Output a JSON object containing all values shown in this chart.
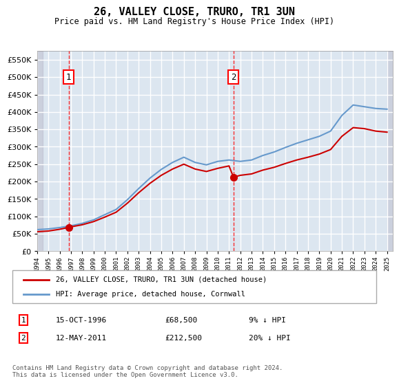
{
  "title": "26, VALLEY CLOSE, TRURO, TR1 3UN",
  "subtitle": "Price paid vs. HM Land Registry's House Price Index (HPI)",
  "sale1_date": "15-OCT-1996",
  "sale1_price": 68500,
  "sale1_label": "1",
  "sale1_hpi_note": "9% ↓ HPI",
  "sale2_date": "12-MAY-2011",
  "sale2_price": 212500,
  "sale2_label": "2",
  "sale2_hpi_note": "20% ↓ HPI",
  "legend_line1": "26, VALLEY CLOSE, TRURO, TR1 3UN (detached house)",
  "legend_line2": "HPI: Average price, detached house, Cornwall",
  "footnote": "Contains HM Land Registry data © Crown copyright and database right 2024.\nThis data is licensed under the Open Government Licence v3.0.",
  "line_red_color": "#cc0000",
  "line_blue_color": "#6699cc",
  "bg_color": "#dce6f0",
  "hatch_color": "#bbbbcc",
  "grid_color": "#ffffff",
  "ylim": [
    0,
    575000
  ],
  "yticks": [
    0,
    50000,
    100000,
    150000,
    200000,
    250000,
    300000,
    350000,
    400000,
    450000,
    500000,
    550000
  ],
  "xlim_start": 1994.0,
  "xlim_end": 2025.5,
  "sale1_x": 1996.8,
  "sale2_x": 2011.4
}
